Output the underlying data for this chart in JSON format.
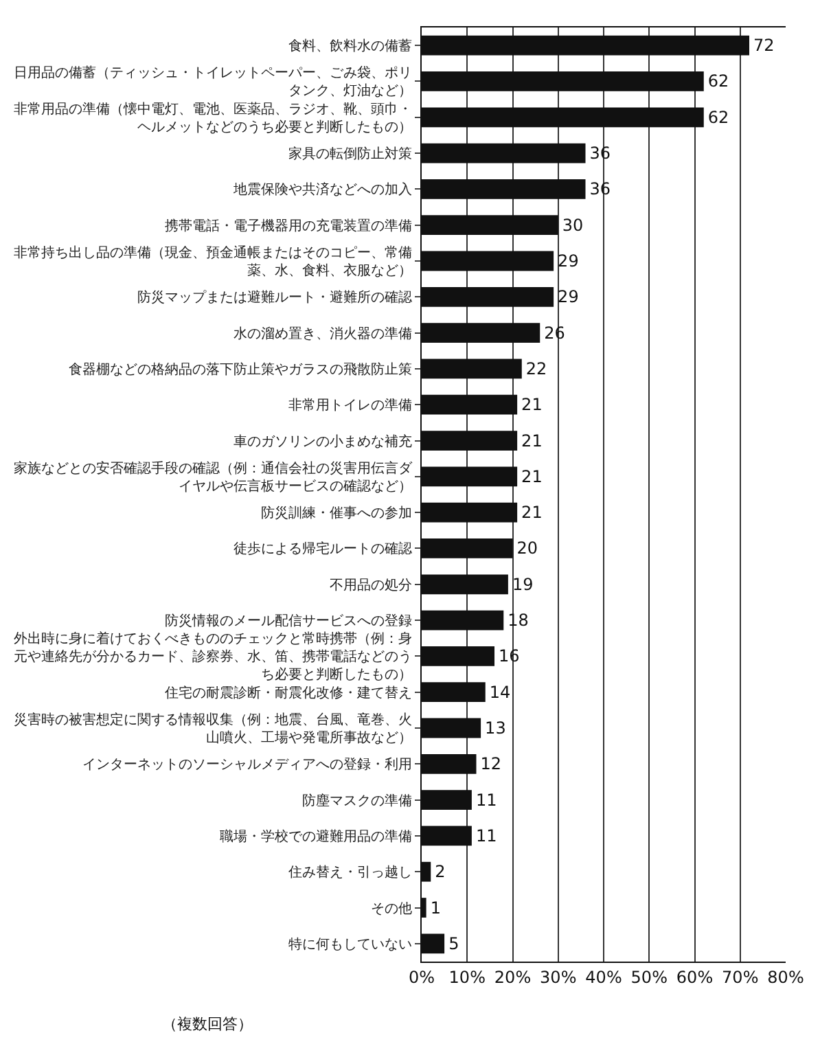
{
  "chart_data": {
    "type": "bar",
    "orientation": "horizontal",
    "categories": [
      "食料、飲料水の備蓄",
      "日用品の備蓄（ティッシュ・トイレットペーパー、ごみ袋、ポリタンク、灯油など）",
      "非常用品の準備（懐中電灯、電池、医薬品、ラジオ、靴、頭巾・ヘルメットなどのうち必要と判断したもの）",
      "家具の転倒防止対策",
      "地震保険や共済などへの加入",
      "携帯電話・電子機器用の充電装置の準備",
      "非常持ち出し品の準備（現金、預金通帳またはそのコピー、常備薬、水、食料、衣服など）",
      "防災マップまたは避難ルート・避難所の確認",
      "水の溜め置き、消火器の準備",
      "食器棚などの格納品の落下防止策やガラスの飛散防止策",
      "非常用トイレの準備",
      "車のガソリンの小まめな補充",
      "家族などとの安否確認手段の確認（例：通信会社の災害用伝言ダイヤルや伝言板サービスの確認など）",
      "防災訓練・催事への参加",
      "徒歩による帰宅ルートの確認",
      "不用品の処分",
      "防災情報のメール配信サービスへの登録",
      "外出時に身に着けておくべきもののチェックと常時携帯（例：身元や連絡先が分かるカード、診察券、水、笛、携帯電話などのうち必要と判断したもの）",
      "住宅の耐震診断・耐震化改修・建て替え",
      "災害時の被害想定に関する情報収集（例：地震、台風、竜巻、火山噴火、工場や発電所事故など）",
      "インターネットのソーシャルメディアへの登録・利用",
      "防塵マスクの準備",
      "職場・学校での避難用品の準備",
      "住み替え・引っ越し",
      "その他",
      "特に何もしていない"
    ],
    "values": [
      72,
      62,
      62,
      36,
      36,
      30,
      29,
      29,
      26,
      22,
      21,
      21,
      21,
      21,
      20,
      19,
      18,
      16,
      14,
      13,
      12,
      11,
      11,
      2,
      1,
      5
    ],
    "color": "#111111",
    "data_labels": true,
    "xlim": [
      0,
      80
    ],
    "xticks": [
      {
        "value": 0,
        "label": "0%"
      },
      {
        "value": 10,
        "label": "10%"
      },
      {
        "value": 20,
        "label": "20%"
      },
      {
        "value": 30,
        "label": "30%"
      },
      {
        "value": 40,
        "label": "40%"
      },
      {
        "value": 50,
        "label": "50%"
      },
      {
        "value": 60,
        "label": "60%"
      },
      {
        "value": 70,
        "label": "70%"
      },
      {
        "value": 80,
        "label": "80%"
      }
    ],
    "grid": "x",
    "legend": false,
    "annotations": [
      "（複数回答）"
    ]
  }
}
